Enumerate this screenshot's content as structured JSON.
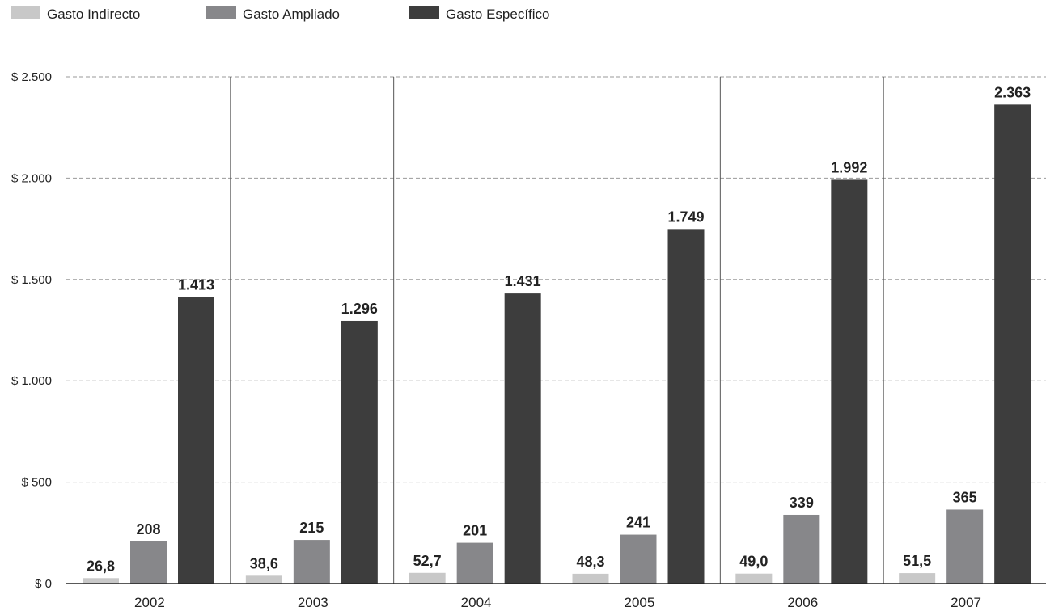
{
  "chart_data": {
    "type": "bar",
    "categories": [
      "2002",
      "2003",
      "2004",
      "2005",
      "2006",
      "2007"
    ],
    "series": [
      {
        "name": "Gasto Indirecto",
        "color": "#c8c8c8",
        "values": [
          26.8,
          38.6,
          52.7,
          48.3,
          49.0,
          51.5
        ],
        "labels": [
          "26,8",
          "38,6",
          "52,7",
          "48,3",
          "49,0",
          "51,5"
        ]
      },
      {
        "name": "Gasto Ampliado",
        "color": "#87878a",
        "values": [
          208,
          215,
          201,
          241,
          339,
          365
        ],
        "labels": [
          "208",
          "215",
          "201",
          "241",
          "339",
          "365"
        ]
      },
      {
        "name": "Gasto Específico",
        "color": "#3d3d3d",
        "values": [
          1413,
          1296,
          1431,
          1749,
          1992,
          2363
        ],
        "labels": [
          "1.413",
          "1.296",
          "1.431",
          "1.749",
          "1.992",
          "2.363"
        ]
      }
    ],
    "yticks": [
      0,
      500,
      1000,
      1500,
      2000,
      2500
    ],
    "ytick_labels": [
      "$ 0",
      "$ 500",
      "$ 1.000",
      "$ 1.500",
      "$ 2.000",
      "$ 2.500"
    ],
    "ylim": [
      0,
      2500
    ],
    "title": "",
    "xlabel": "",
    "ylabel": "",
    "grid": true,
    "legend_position": "top-left"
  }
}
